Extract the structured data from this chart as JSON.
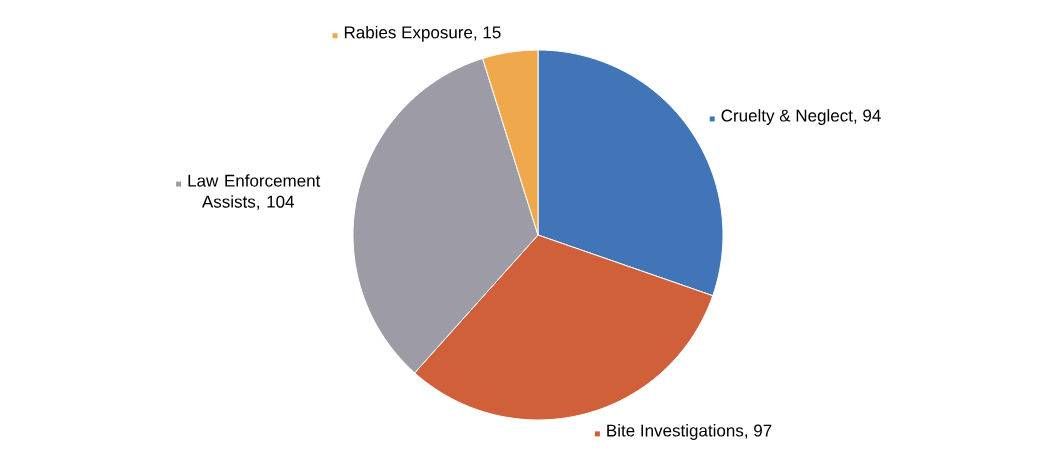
{
  "chart_data": {
    "type": "pie",
    "categories": [
      "Cruelty & Neglect",
      "Bite Investigations",
      "Law Enforcement Assists",
      "Rabies Exposure"
    ],
    "values": [
      94,
      97,
      104,
      15
    ],
    "colors": [
      "#4274b8",
      "#d0603a",
      "#9c9ba6",
      "#f0a84c"
    ],
    "legend": "top left",
    "value_labels": [
      ", 94",
      ", 97",
      ", 104",
      ", 15"
    ]
  }
}
